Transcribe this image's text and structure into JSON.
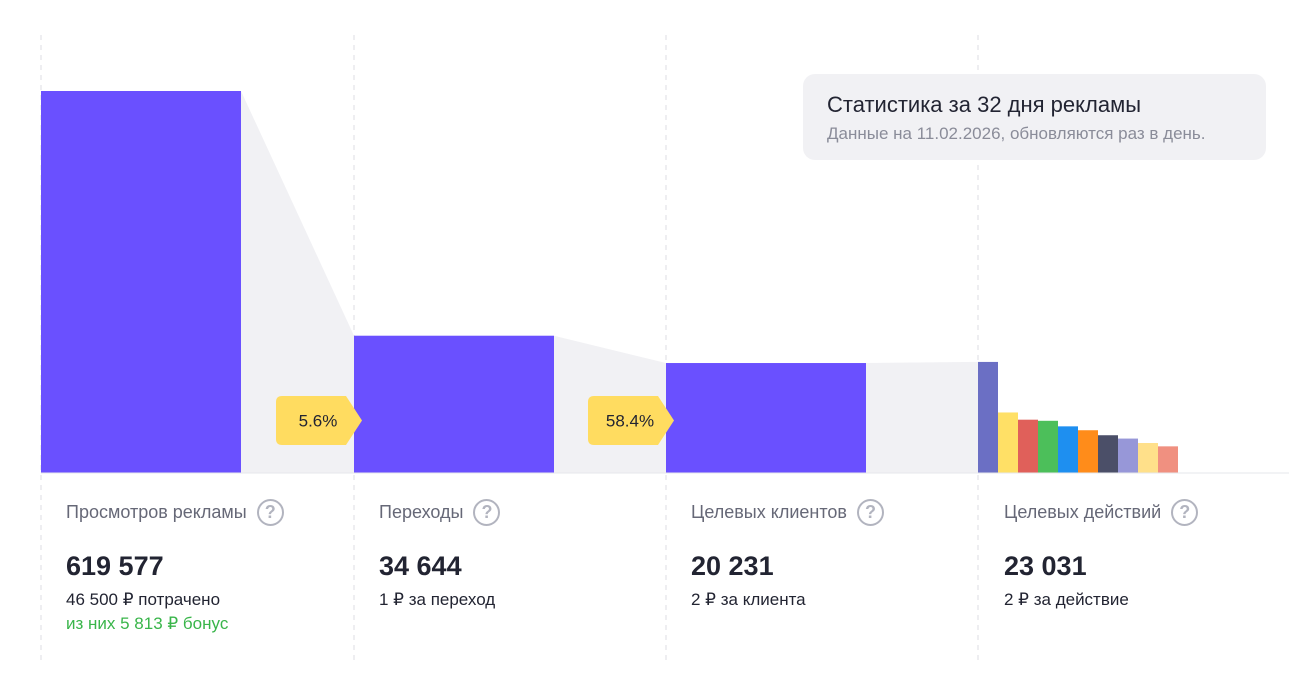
{
  "chart_data": {
    "type": "bar",
    "stages": [
      {
        "label": "Просмотров рекламы",
        "value": 619577
      },
      {
        "label": "Переходы",
        "value": 34644
      },
      {
        "label": "Целевых клиентов",
        "value": 20231
      },
      {
        "label": "Целевых действий",
        "value": 23031
      }
    ],
    "conversions": [
      "5.6%",
      "58.4%"
    ],
    "action_breakdown": [
      {
        "color": "#6b6fc4",
        "relative": 1.0
      },
      {
        "color": "#ffe066",
        "relative": 0.545
      },
      {
        "color": "#e0605a",
        "relative": 0.48
      },
      {
        "color": "#4cbf5a",
        "relative": 0.47
      },
      {
        "color": "#1e8ff0",
        "relative": 0.42
      },
      {
        "color": "#ff8c1a",
        "relative": 0.385
      },
      {
        "color": "#4b4f68",
        "relative": 0.34
      },
      {
        "color": "#9797d8",
        "relative": 0.31
      },
      {
        "color": "#ffe08a",
        "relative": 0.27
      },
      {
        "color": "#f09080",
        "relative": 0.24
      }
    ],
    "colors": {
      "bar": "#6a50ff",
      "connector": "#f1f1f4",
      "badge": "#ffdc60"
    }
  },
  "tooltip": {
    "title": "Статистика за 32 дня рекламы",
    "subtitle": "Данные на 11.02.2026, обновляются раз в день."
  },
  "columns": [
    {
      "label": "Просмотров рекламы",
      "value": "619 577",
      "sub": "46 500 ₽ потрачено",
      "bonus": "из них 5 813 ₽ бонус"
    },
    {
      "label": "Переходы",
      "value": "34 644",
      "sub": "1 ₽ за переход"
    },
    {
      "label": "Целевых клиентов",
      "value": "20 231",
      "sub": "2 ₽ за клиента"
    },
    {
      "label": "Целевых действий",
      "value": "23 031",
      "sub": "2 ₽ за действие"
    }
  ],
  "help_symbol": "?"
}
